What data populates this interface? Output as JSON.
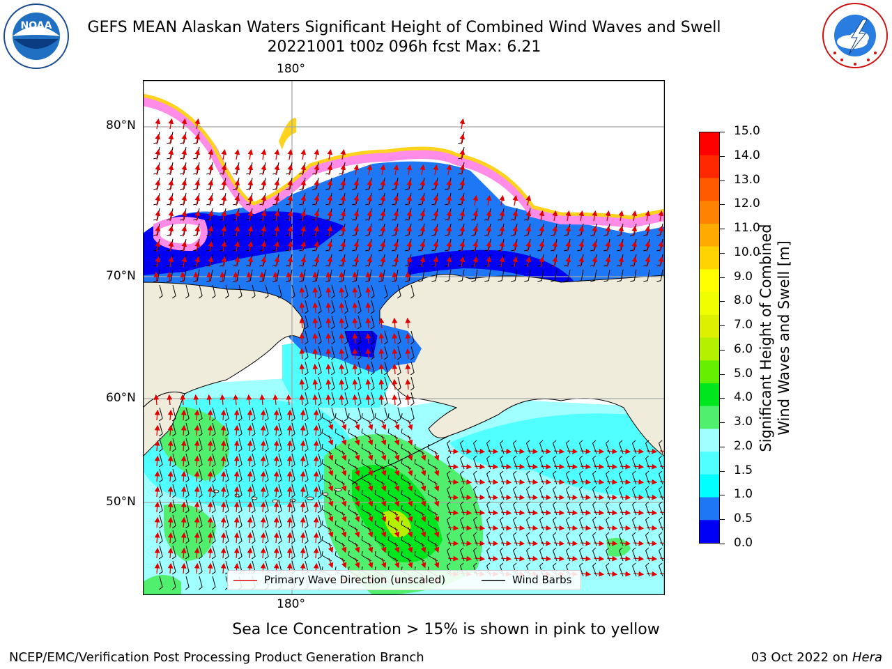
{
  "header": {
    "title_line1": "GEFS MEAN Alaskan Waters Significant Height of Combined Wind Waves and Swell",
    "title_line2": "20221001 t00z 096h fcst   Max: 6.21"
  },
  "logos": {
    "left": "noaa-logo",
    "left_text": "NOAA",
    "left_ring_text": "NATIONAL OCEANIC AND ATMOSPHERIC ADMINISTRATION · U.S. DEPARTMENT OF COMMERCE",
    "right": "nws-logo",
    "right_ring_text": "NATIONAL WEATHER SERVICE"
  },
  "map": {
    "lon_label_top": "180°",
    "lon_label_bottom": "180°",
    "lat_labels": [
      "80°N",
      "70°N",
      "60°N",
      "50°N"
    ],
    "colors": {
      "land": "#efecdc",
      "ice": "#ff8ce6",
      "ice_edge": "#ffd21e",
      "deep_blue": "#0000f5",
      "blue": "#1e78f5",
      "cyan": "#50ffff",
      "light_cyan": "#a0ffff",
      "green": "#50f06e",
      "bright_green": "#00e61e",
      "yellow_green": "#b4f000",
      "wave_arrow": "#e00000",
      "wind_barb": "#000000"
    }
  },
  "legend": {
    "wave_label": "Primary Wave Direction (unscaled)",
    "wind_label": "Wind Barbs"
  },
  "colorbar": {
    "label_line1": "Significant Height of Combined",
    "label_line2": "Wind Waves and Swell [m]",
    "ticks": [
      "15.0",
      "14.0",
      "13.0",
      "12.0",
      "11.0",
      "10.0",
      "9.0",
      "8.0",
      "7.0",
      "6.0",
      "5.0",
      "4.0",
      "3.0",
      "2.0",
      "1.5",
      "1.0",
      "0.5",
      "0.0"
    ],
    "bands_top_to_bottom": [
      "#ff0000",
      "#ff2800",
      "#ff5a00",
      "#ff8200",
      "#ffaa00",
      "#ffd200",
      "#ffff00",
      "#f0ff00",
      "#dcf000",
      "#b4f000",
      "#64f000",
      "#00e61e",
      "#50f06e",
      "#a0ffff",
      "#50ffff",
      "#00ffff",
      "#1e78f5",
      "#0000f5"
    ]
  },
  "notes": {
    "sea_ice": "Sea Ice Concentration > 15% is shown in pink to yellow"
  },
  "footer": {
    "left": "NCEP/EMC/Verification Post Processing Product Generation Branch",
    "right_date": "03 Oct 2022 on ",
    "right_machine": "Hera"
  }
}
